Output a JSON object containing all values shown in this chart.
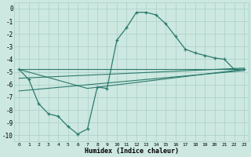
{
  "xlabel": "Humidex (Indice chaleur)",
  "xlim": [
    -0.5,
    23.5
  ],
  "ylim": [
    -10.5,
    0.5
  ],
  "xticks": [
    0,
    1,
    2,
    3,
    4,
    5,
    6,
    7,
    8,
    9,
    10,
    11,
    12,
    13,
    14,
    15,
    16,
    17,
    18,
    19,
    20,
    21,
    22,
    23
  ],
  "yticks": [
    0,
    -1,
    -2,
    -3,
    -4,
    -5,
    -6,
    -7,
    -8,
    -9,
    -10
  ],
  "bg_color": "#cce8e0",
  "line_color": "#2d7a6e",
  "grid_color": "#aacfc8",
  "line1_x": [
    0,
    1,
    2,
    3,
    4,
    5,
    6,
    7,
    8,
    9,
    10,
    11,
    12,
    13,
    14,
    15,
    16,
    17,
    18,
    19,
    20,
    21,
    22,
    23
  ],
  "line1_y": [
    -4.8,
    -5.6,
    -7.5,
    -8.3,
    -8.5,
    -9.3,
    -9.9,
    -9.5,
    -6.2,
    -6.3,
    -2.5,
    -1.5,
    -0.3,
    -0.3,
    -0.5,
    -1.2,
    -2.2,
    -3.2,
    -3.5,
    -3.7,
    -3.9,
    -4.0,
    -4.8,
    -4.8
  ],
  "line2_x": [
    0,
    23
  ],
  "line2_y": [
    -4.8,
    -4.8
  ],
  "line3_x": [
    0,
    23
  ],
  "line3_y": [
    -5.5,
    -4.7
  ],
  "line4_x": [
    0,
    23
  ],
  "line4_y": [
    -6.5,
    -4.9
  ],
  "line5_x": [
    0,
    7,
    23
  ],
  "line5_y": [
    -4.8,
    -6.3,
    -4.8
  ]
}
